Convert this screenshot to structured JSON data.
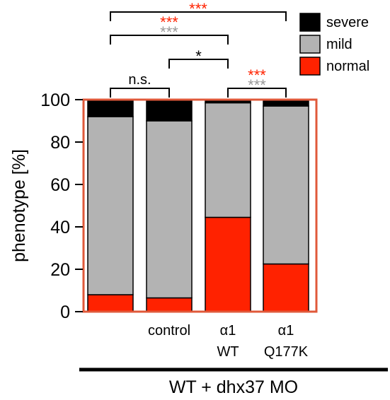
{
  "chart_data": {
    "type": "bar",
    "stacked": true,
    "categories": [
      "",
      "control",
      "α1 WT",
      "α1 Q177K"
    ],
    "category_lines": [
      [
        ""
      ],
      [
        "control"
      ],
      [
        "α1",
        "WT"
      ],
      [
        "α1",
        "Q177K"
      ]
    ],
    "series": [
      {
        "name": "normal",
        "color": "#ff2200",
        "values": [
          8,
          6.5,
          44.5,
          22.5
        ]
      },
      {
        "name": "mild",
        "color": "#b3b3b3",
        "values": [
          84,
          83.5,
          54,
          74.5
        ]
      },
      {
        "name": "severe",
        "color": "#000000",
        "values": [
          8,
          10,
          1.5,
          3
        ]
      }
    ],
    "ylabel": "phenotype [%]",
    "ylim": [
      0,
      100
    ],
    "yticks": [
      0,
      20,
      40,
      60,
      80,
      100
    ],
    "legend_position": "top-right",
    "frame_color": "#e0593a",
    "group_label": "WT + dhx37 MO",
    "significance": [
      {
        "from": 0,
        "to": 1,
        "marks": [
          {
            "text": "n.s.",
            "color": "#000000"
          }
        ]
      },
      {
        "from": 2,
        "to": 3,
        "marks": [
          {
            "text": "***",
            "color": "#ff2200"
          },
          {
            "text": "***",
            "color": "#999999"
          }
        ]
      },
      {
        "from": 1,
        "to": 2,
        "marks": [
          {
            "text": "*",
            "color": "#000000"
          }
        ]
      },
      {
        "from": 0,
        "to": 2,
        "marks": [
          {
            "text": "***",
            "color": "#ff2200"
          },
          {
            "text": "***",
            "color": "#999999"
          }
        ]
      },
      {
        "from": 0,
        "to": 3,
        "marks": [
          {
            "text": "***",
            "color": "#ff2200"
          }
        ]
      }
    ]
  }
}
